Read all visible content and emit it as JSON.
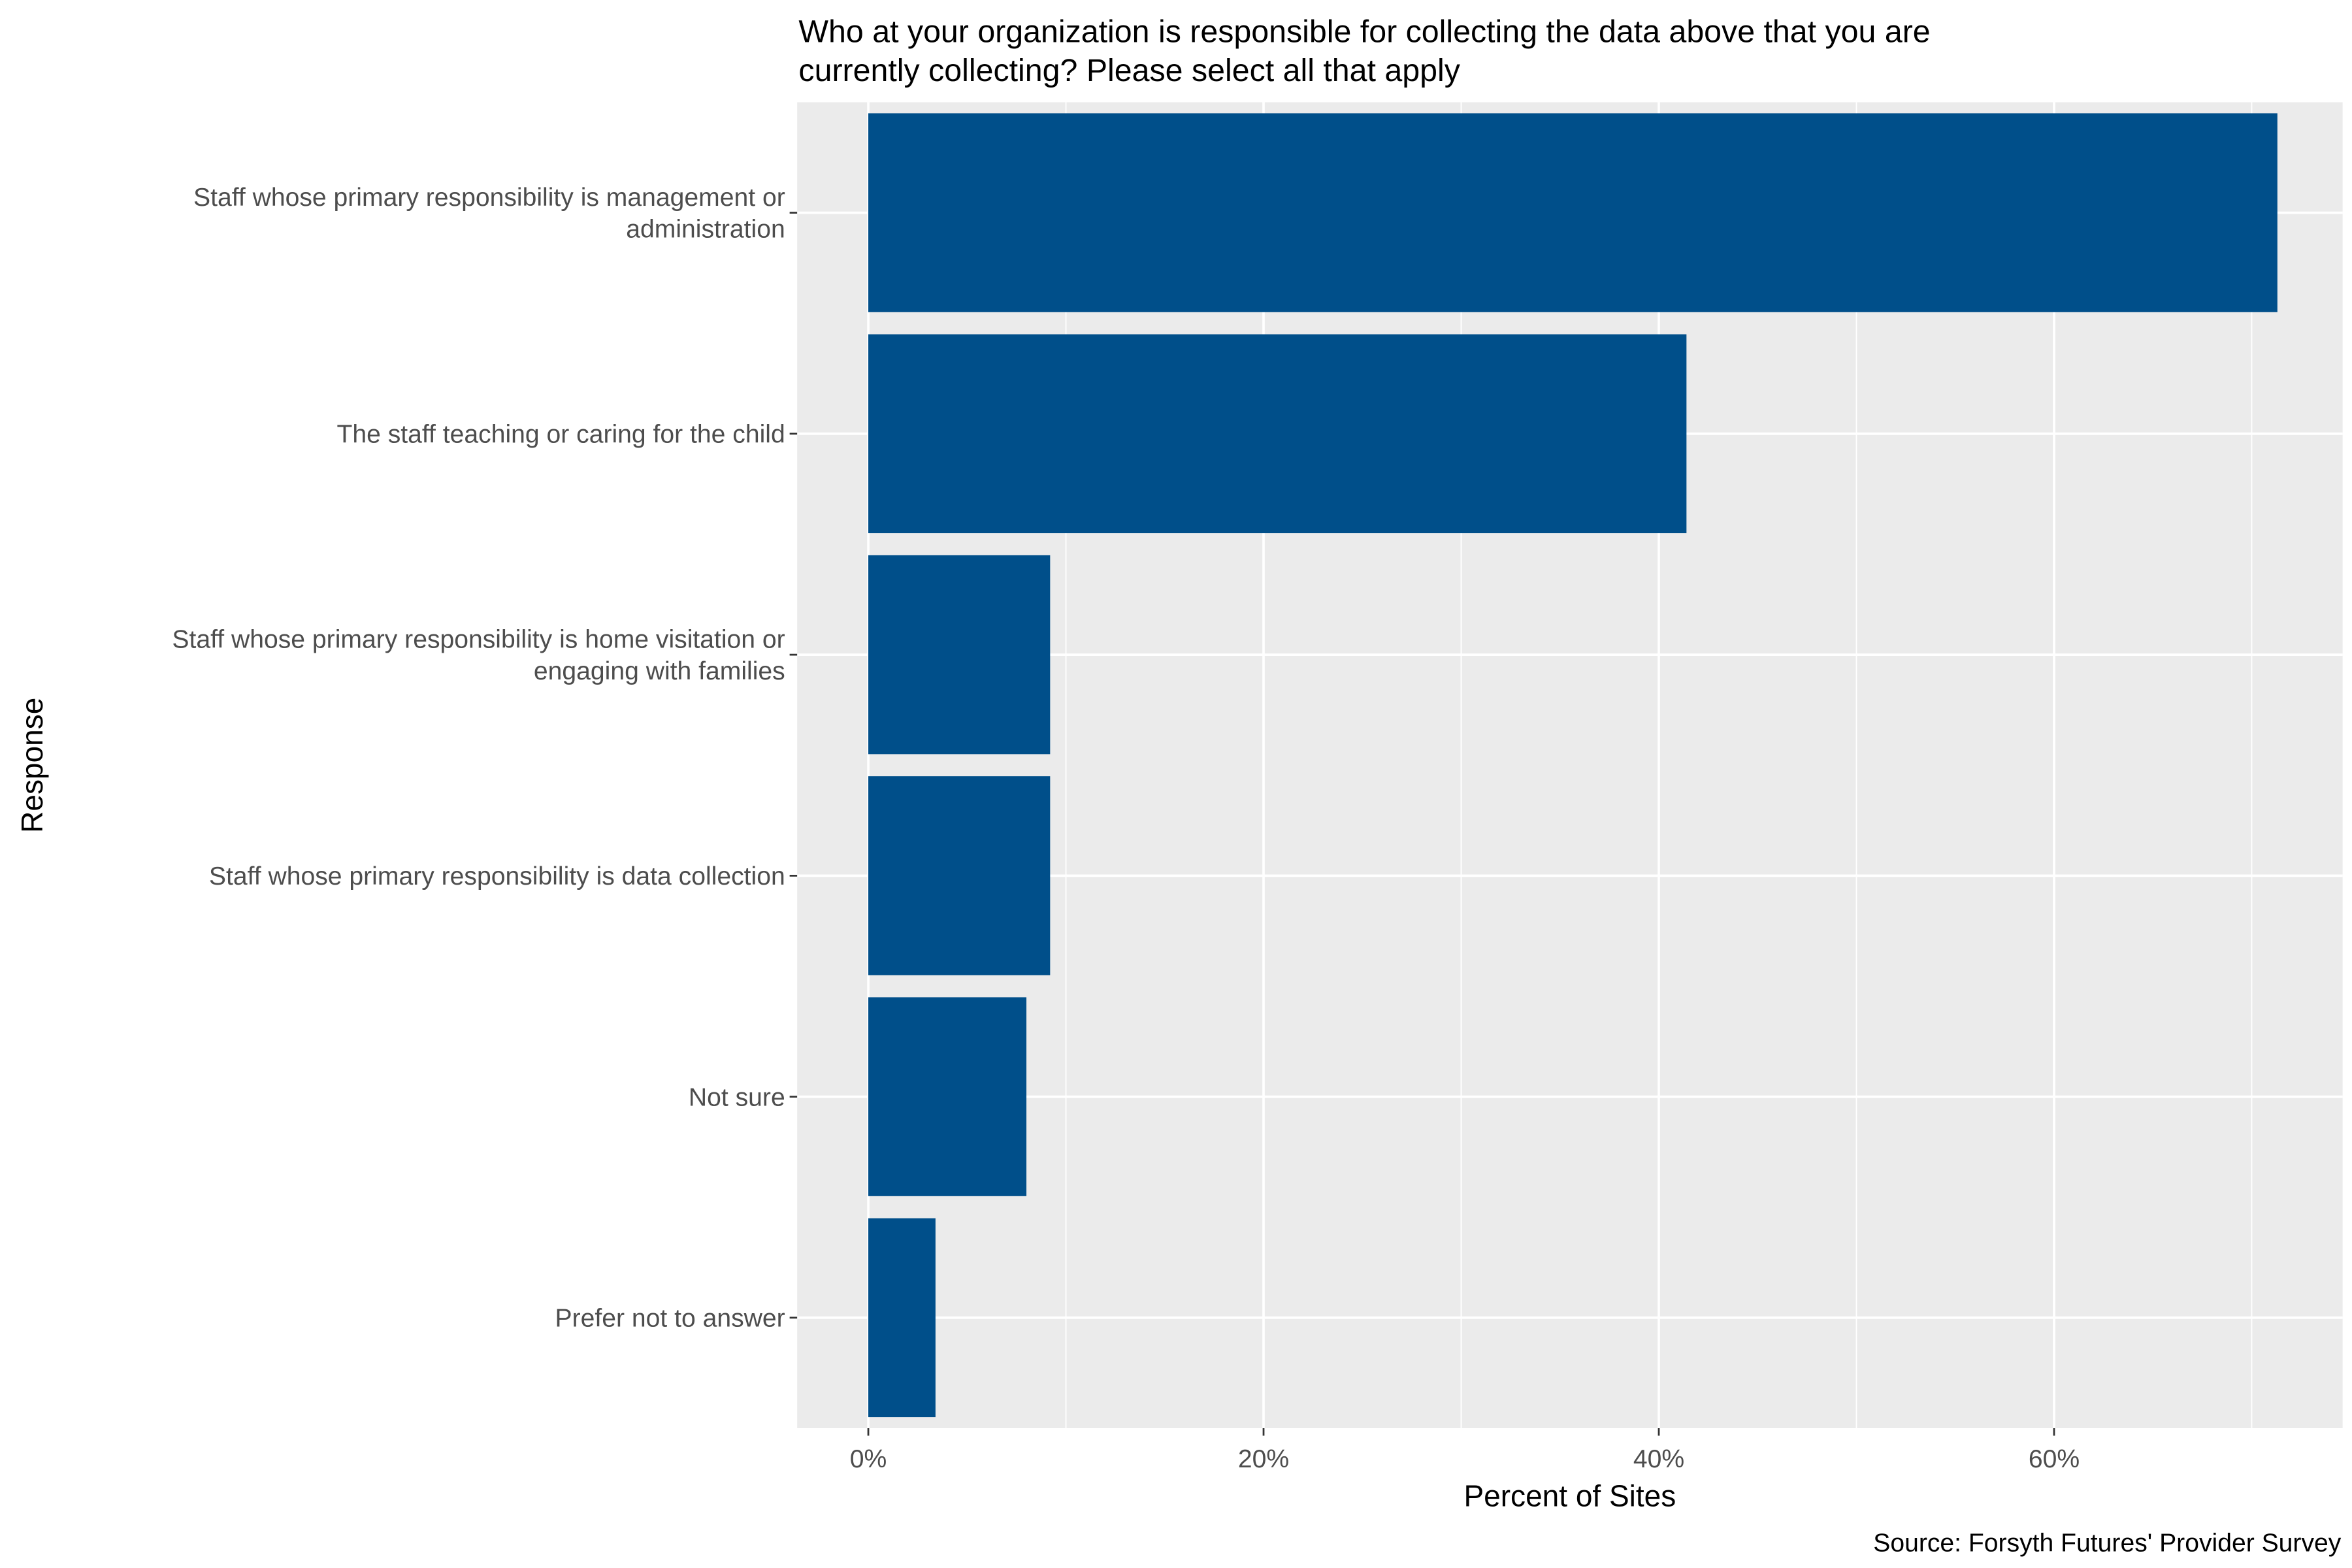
{
  "chart_data": {
    "type": "bar",
    "orientation": "horizontal",
    "title": "Who at your organization is responsible for collecting the data above that you are currently collecting? Please select all that apply",
    "title_lines": [
      "Who at your organization is responsible for collecting the data above that you are",
      "currently collecting? Please select all that apply"
    ],
    "xlabel": "Percent of Sites",
    "ylabel": "Response",
    "caption": "Source: Forsyth Futures' Provider Survey",
    "categories": [
      [
        "Staff whose primary responsibility is management or",
        "administration"
      ],
      [
        "The staff teaching or caring for the child"
      ],
      [
        "Staff whose primary responsibility is home visitation or",
        "engaging with families"
      ],
      [
        "Staff whose primary responsibility is data collection"
      ],
      [
        "Not sure"
      ],
      [
        "Prefer not to answer"
      ]
    ],
    "values": [
      71.3,
      41.4,
      9.2,
      9.2,
      8.0,
      3.4
    ],
    "xlim": [
      -3.6,
      74.6
    ],
    "xticks": [
      0,
      20,
      40,
      60
    ],
    "xtick_labels": [
      "0%",
      "20%",
      "40%",
      "60%"
    ],
    "grid": true,
    "bar_color": "#004f8a",
    "panel_color": "#ebebeb"
  }
}
